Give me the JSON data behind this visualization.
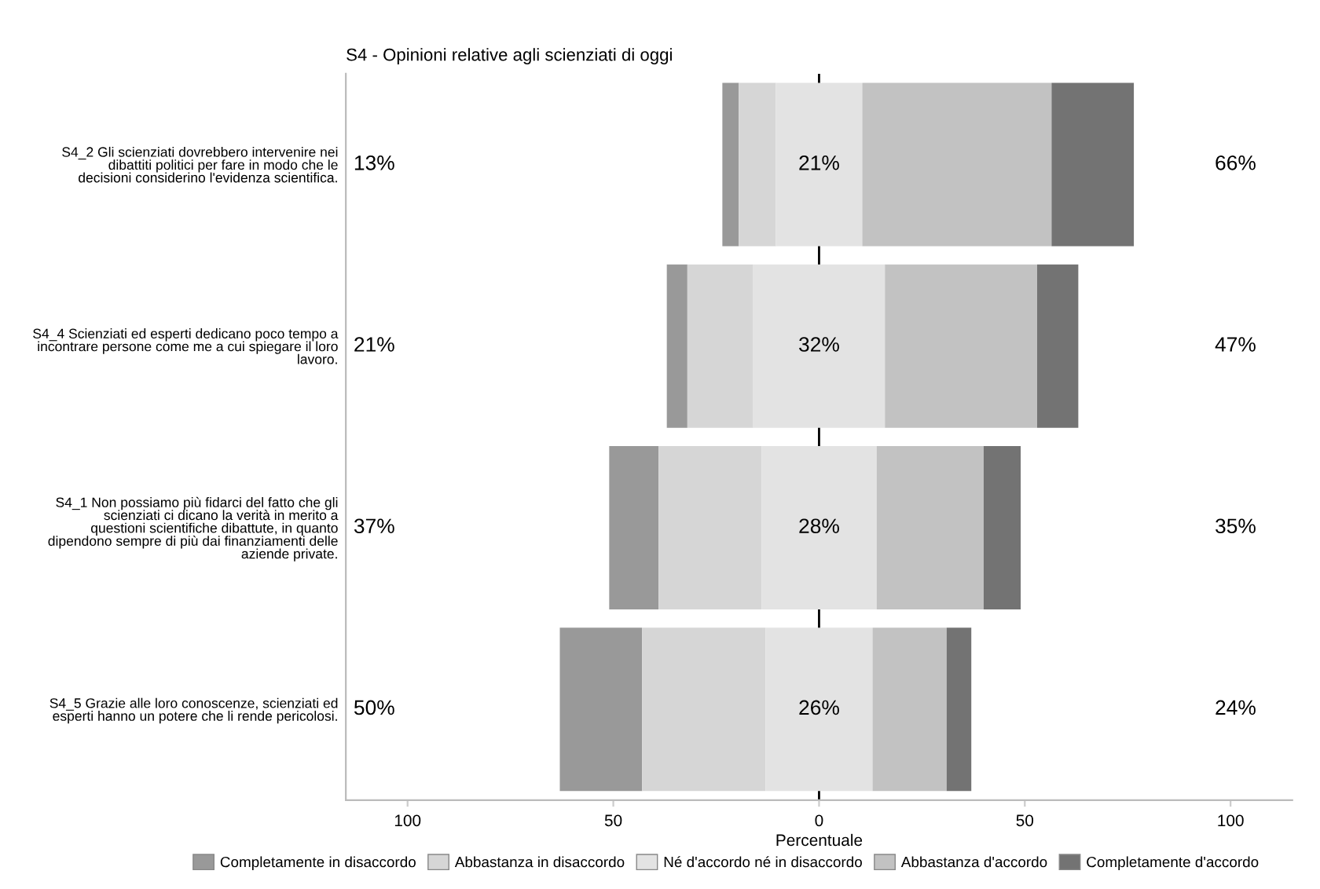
{
  "chart_data": {
    "type": "bar",
    "orientation": "horizontal",
    "title": "S4 - Opinioni relative agli scienziati di oggi",
    "xlabel": "Percentuale",
    "categories": [
      "S4_2 Gli scienziati dovrebbero intervenire nei\ndibattiti politici per fare in modo che le\ndecisioni considerino l'evidenza scientifica.",
      "S4_4 Scienziati ed esperti dedicano poco tempo a\nincontrare persone come me a cui spiegare il loro\nlavoro.",
      "S4_1 Non possiamo più fidarci del fatto che gli\nscienziati ci dicano la verità in merito a\nquestioni scientifiche dibattute, in quanto\ndipendono sempre di più dai finanziamenti delle\naziende private.",
      "S4_5 Grazie alle loro conoscenze, scienziati ed\nesperti hanno un potere che li rende pericolosi."
    ],
    "series": [
      {
        "name": "Completamente in disaccordo",
        "color": "#999999",
        "base": [
          -23.5,
          -37,
          -51,
          -63
        ],
        "values": [
          4,
          5,
          12,
          20
        ]
      },
      {
        "name": "Abbastanza in disaccordo",
        "color": "#d6d6d6",
        "base": [
          -19.5,
          -32,
          -39,
          -43
        ],
        "values": [
          9,
          16,
          25,
          30
        ]
      },
      {
        "name": "Né d'accordo né in disaccordo",
        "color": "#e3e3e3",
        "base": [
          -10.5,
          -16,
          -14,
          -13
        ],
        "values": [
          21,
          32,
          28,
          26
        ]
      },
      {
        "name": "Abbastanza d'accordo",
        "color": "#c2c2c2",
        "base": [
          10.5,
          16,
          14,
          13
        ],
        "values": [
          46,
          37,
          26,
          18
        ]
      },
      {
        "name": "Completamente d'accordo",
        "color": "#737373",
        "base": [
          56.5,
          53,
          40,
          31
        ],
        "values": [
          20,
          10,
          9,
          6
        ]
      }
    ],
    "annotations": [
      "13%",
      "21%",
      "66%",
      "21%",
      "32%",
      "47%",
      "37%",
      "28%",
      "35%",
      "50%",
      "26%",
      "24%"
    ],
    "ref_lines": [
      {
        "axis": "x",
        "value": 0,
        "color": "#000000"
      }
    ],
    "xlim": [
      -115,
      115
    ],
    "xticks": [
      {
        "value": -100,
        "label": "100"
      },
      {
        "value": -50,
        "label": "50"
      },
      0,
      50,
      100
    ],
    "legend": "bottom",
    "grid": false
  }
}
